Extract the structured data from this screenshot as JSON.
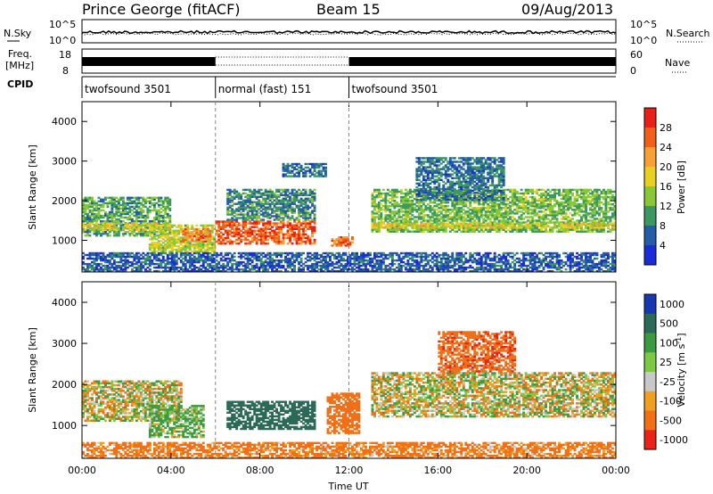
{
  "header": {
    "station": "Prince George (fitACF)",
    "beam": "Beam 15",
    "date": "09/Aug/2013"
  },
  "summary": {
    "nsky_label": "N.Sky",
    "nsearch_label": "N.Search",
    "freq_label_line1": "Freq.",
    "freq_label_line2": "[MHz]",
    "nave_label": "Nave",
    "cpid_label": "CPID",
    "noise_ticks": [
      "10^5",
      "10^0"
    ],
    "freq_ticks": [
      "18",
      "8"
    ],
    "nave_ticks": [
      "60",
      "0"
    ]
  },
  "modes": [
    {
      "name": "twofsound 3501",
      "start_hour": 0,
      "end_hour": 6
    },
    {
      "name": "normal (fast) 151",
      "start_hour": 6,
      "end_hour": 12
    },
    {
      "name": "twofsound 3501",
      "start_hour": 12,
      "end_hour": 24
    }
  ],
  "time_axis": {
    "label": "Time UT",
    "ticks": [
      "00:00",
      "04:00",
      "08:00",
      "12:00",
      "16:00",
      "20:00",
      "00:00"
    ],
    "range_hours": [
      0,
      24
    ]
  },
  "colorbars": {
    "power": {
      "label": "Power [dB]",
      "ticks": [
        "28",
        "24",
        "20",
        "16",
        "12",
        "8",
        "4"
      ],
      "colors": [
        "#e8201a",
        "#f06018",
        "#f8a038",
        "#e8d020",
        "#88c838",
        "#3c9860",
        "#245ca8",
        "#1a2cd8"
      ]
    },
    "velocity": {
      "label": "Velocity [m s",
      "label_sup": "-1",
      "label_end": "]",
      "ticks": [
        "1000",
        "500",
        "100",
        "25",
        "-25",
        "-100",
        "-500",
        "-1000"
      ],
      "colors": [
        "#1838b0",
        "#2c6a58",
        "#3c9a40",
        "#7ec848",
        "#c8c8c8",
        "#f0a020",
        "#f07018",
        "#e82418"
      ]
    }
  },
  "chart_data": [
    {
      "type": "heatmap",
      "title": "Power",
      "ylabel": "Slant Range [km]",
      "yticks": [
        "1000",
        "2000",
        "3000",
        "4000"
      ],
      "ylim": [
        200,
        4500
      ],
      "xlim_hours": [
        0,
        24
      ],
      "units": "dB",
      "zlim": [
        0,
        32
      ],
      "regions": [
        {
          "t": [
            0.0,
            4.0
          ],
          "r": [
            1100,
            2100
          ],
          "level": 10
        },
        {
          "t": [
            0.0,
            4.0
          ],
          "r": [
            1250,
            1450
          ],
          "level": 18
        },
        {
          "t": [
            3.0,
            6.0
          ],
          "r": [
            700,
            1400
          ],
          "level": 16
        },
        {
          "t": [
            4.5,
            5.8
          ],
          "r": [
            950,
            1300
          ],
          "level": 26
        },
        {
          "t": [
            6.0,
            10.5
          ],
          "r": [
            900,
            1500
          ],
          "level": 28
        },
        {
          "t": [
            6.5,
            10.5
          ],
          "r": [
            1500,
            2300
          ],
          "level": 8
        },
        {
          "t": [
            9.0,
            11.0
          ],
          "r": [
            2600,
            2950
          ],
          "level": 6
        },
        {
          "t": [
            11.2,
            12.2
          ],
          "r": [
            850,
            1100
          ],
          "level": 26
        },
        {
          "t": [
            13.0,
            24.0
          ],
          "r": [
            1200,
            2300
          ],
          "level": 12
        },
        {
          "t": [
            13.0,
            24.0
          ],
          "r": [
            1300,
            1450
          ],
          "level": 18
        },
        {
          "t": [
            15.0,
            19.0
          ],
          "r": [
            2000,
            3100
          ],
          "level": 6
        },
        {
          "t": [
            0.0,
            24.0
          ],
          "r": [
            200,
            700
          ],
          "level": 4
        }
      ]
    },
    {
      "type": "heatmap",
      "title": "Velocity",
      "ylabel": "Slant Range [km]",
      "yticks": [
        "1000",
        "2000",
        "3000",
        "4000"
      ],
      "ylim": [
        200,
        4500
      ],
      "xlim_hours": [
        0,
        24
      ],
      "units": "m/s",
      "zlim": [
        -1000,
        1000
      ],
      "regions": [
        {
          "t": [
            0.0,
            4.5
          ],
          "r": [
            1100,
            2100
          ],
          "value": 0
        },
        {
          "t": [
            3.0,
            5.5
          ],
          "r": [
            700,
            1500
          ],
          "value": 150
        },
        {
          "t": [
            6.5,
            10.5
          ],
          "r": [
            900,
            1600
          ],
          "value": 600
        },
        {
          "t": [
            11.0,
            12.5
          ],
          "r": [
            800,
            1800
          ],
          "value": -300
        },
        {
          "t": [
            13.0,
            24.0
          ],
          "r": [
            1200,
            2300
          ],
          "value": 0
        },
        {
          "t": [
            16.0,
            19.5
          ],
          "r": [
            2300,
            3300
          ],
          "value": -400
        },
        {
          "t": [
            0.0,
            24.0
          ],
          "r": [
            200,
            600
          ],
          "value": -200
        }
      ]
    }
  ]
}
